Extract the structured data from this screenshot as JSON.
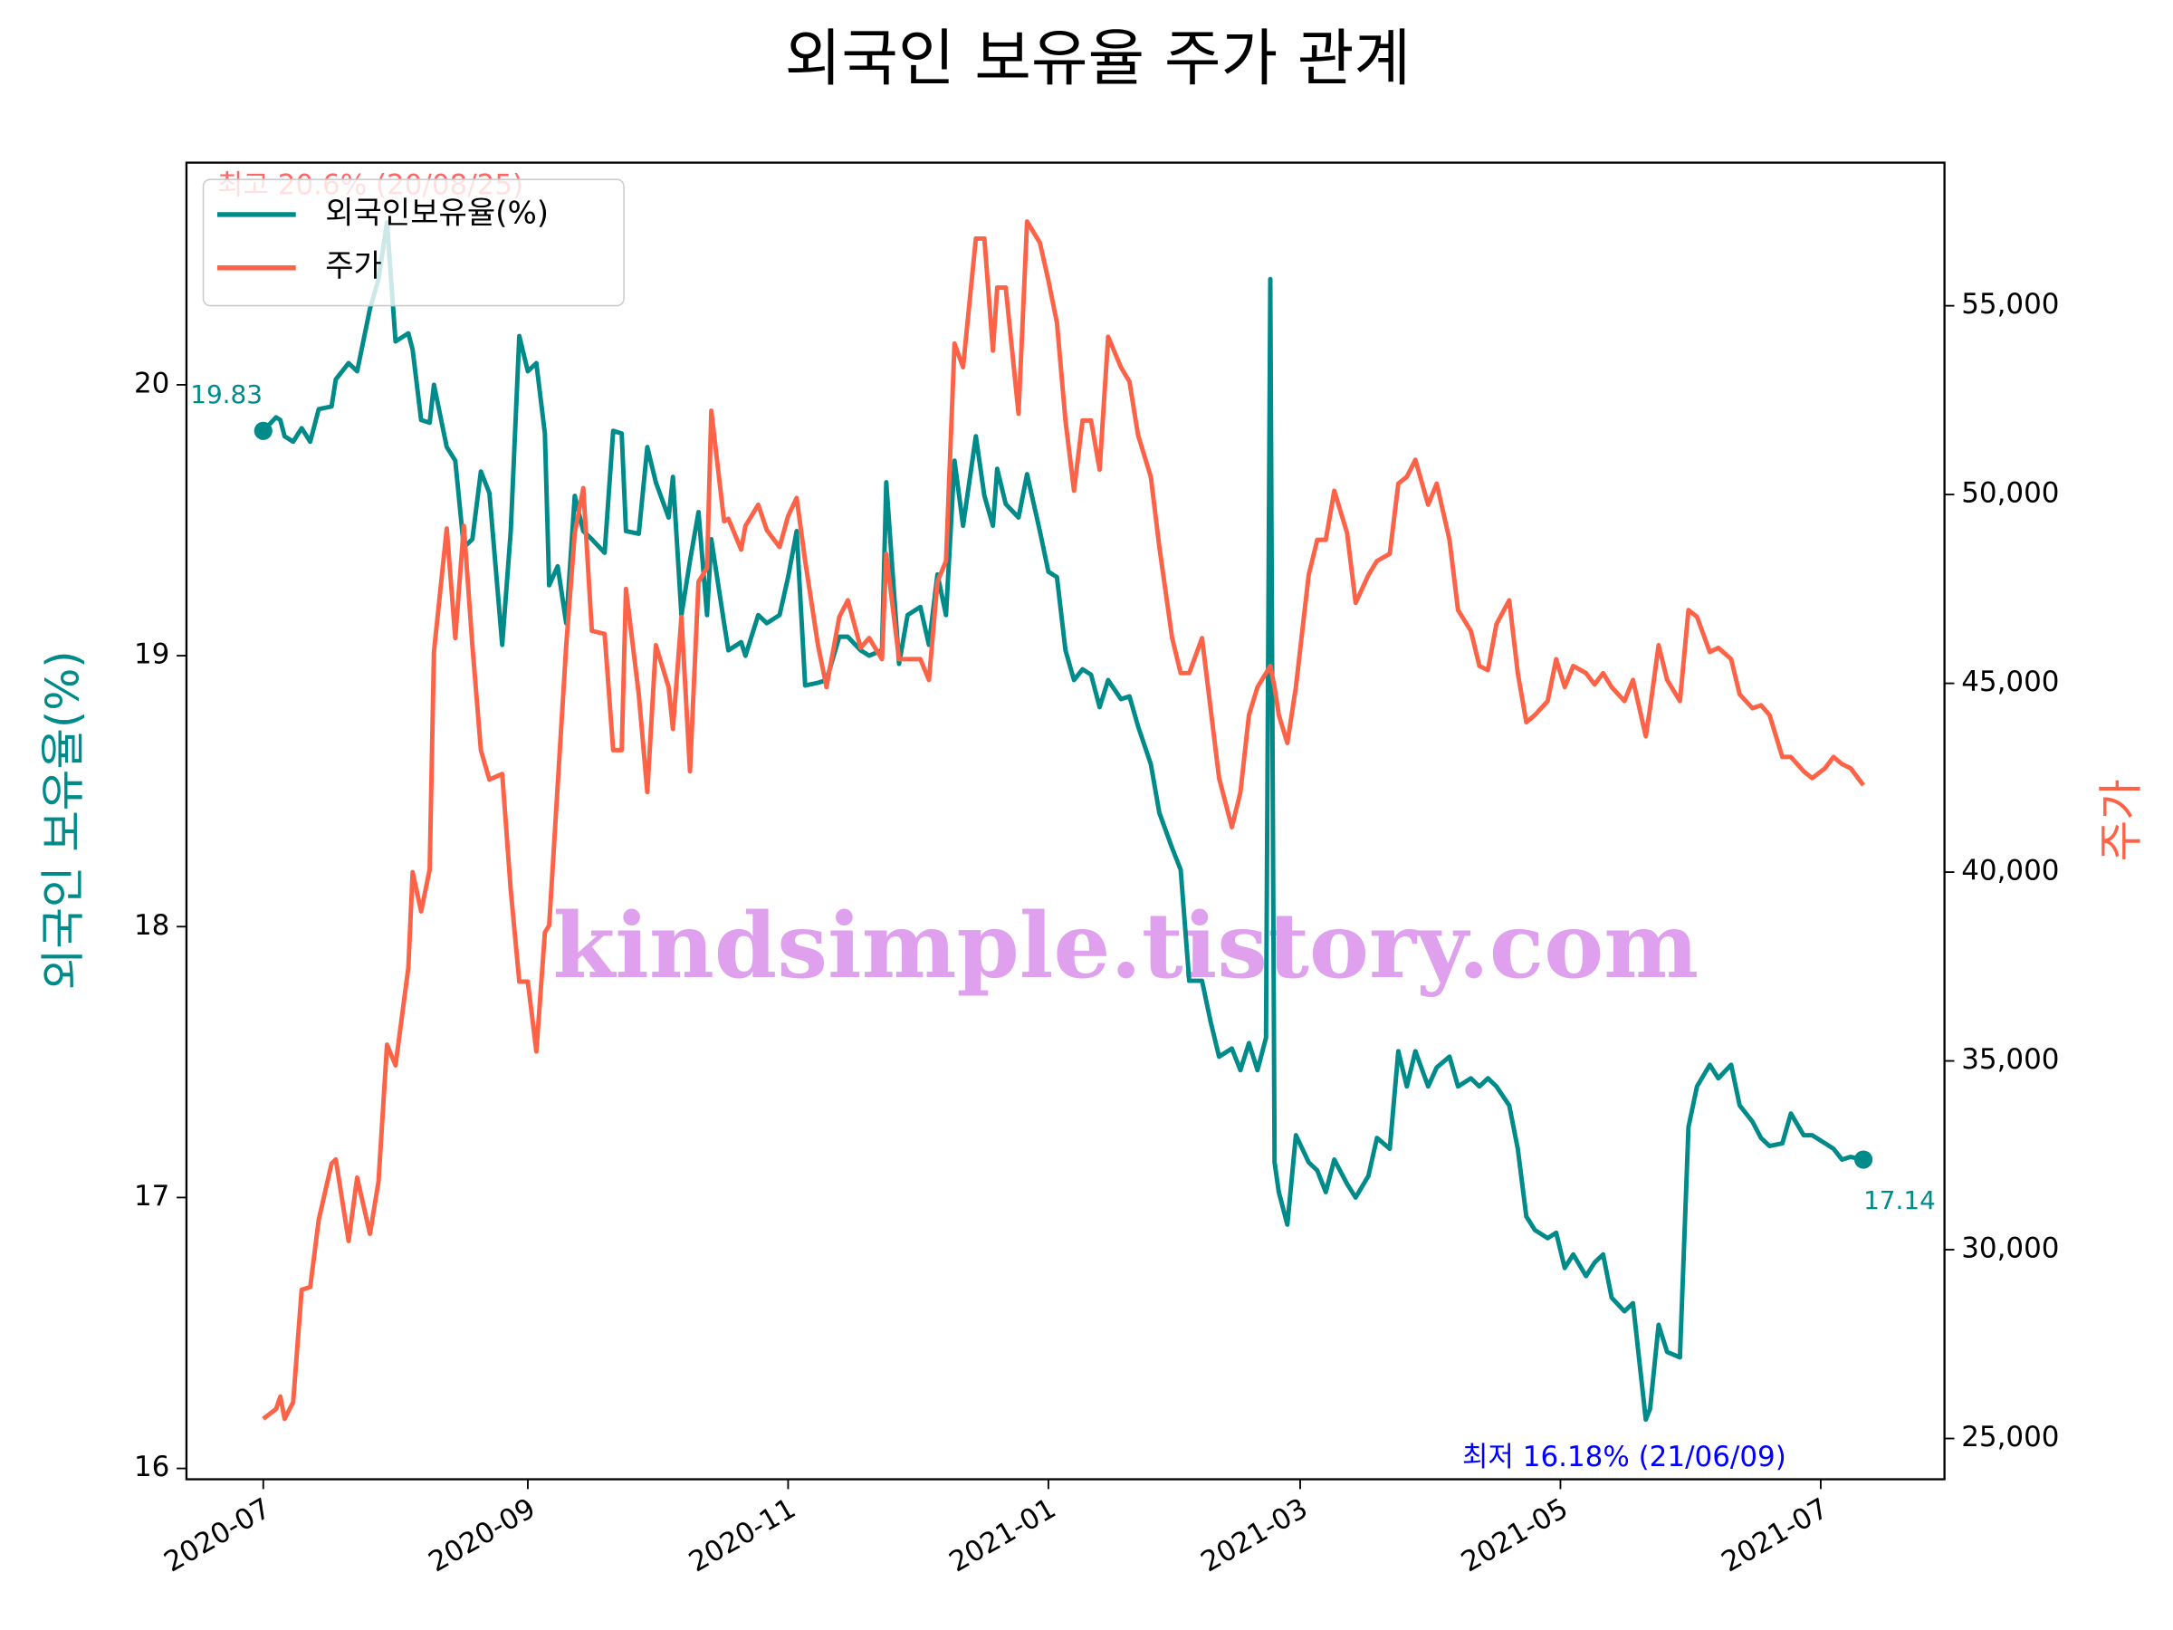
{
  "chart_data": {
    "type": "line",
    "title": "외국인 보유율 주가 관계",
    "y_label": "외국인 보유율(%)",
    "y2_label": "주가",
    "watermark": "kindsimple.tistory.com",
    "legend": "upper left",
    "xlim": [
      -18,
      394
    ],
    "xticks": [
      {
        "value": 0,
        "label": "2020-07"
      },
      {
        "value": 62,
        "label": "2020-09"
      },
      {
        "value": 123,
        "label": "2020-11"
      },
      {
        "value": 184,
        "label": "2021-01"
      },
      {
        "value": 243,
        "label": "2021-03"
      },
      {
        "value": 304,
        "label": "2021-05"
      },
      {
        "value": 365,
        "label": "2021-07"
      }
    ],
    "ylim": [
      15.96,
      20.82
    ],
    "yticks": [
      16,
      17,
      18,
      19,
      20
    ],
    "y2lim": [
      23920,
      58790
    ],
    "y2ticks": [
      {
        "value": 25000,
        "label": "25,000"
      },
      {
        "value": 30000,
        "label": "30,000"
      },
      {
        "value": 35000,
        "label": "35,000"
      },
      {
        "value": 40000,
        "label": "40,000"
      },
      {
        "value": 45000,
        "label": "45,000"
      },
      {
        "value": 50000,
        "label": "50,000"
      },
      {
        "value": 55000,
        "label": "55,000"
      }
    ],
    "x": [
      0,
      3,
      4,
      5,
      7,
      9,
      11,
      13,
      16,
      17,
      20,
      22,
      25,
      27,
      29,
      31,
      34,
      35,
      37,
      39,
      40,
      43,
      45,
      47,
      49,
      51,
      53,
      56,
      58,
      60,
      62,
      64,
      66,
      67,
      69,
      71,
      73,
      75,
      77,
      80,
      82,
      84,
      85,
      88,
      90,
      92,
      95,
      96,
      98,
      100,
      102,
      104,
      105,
      108,
      109,
      112,
      113,
      116,
      118,
      121,
      123,
      125,
      127,
      130,
      132,
      135,
      137,
      140,
      142,
      145,
      146,
      149,
      151,
      154,
      156,
      158,
      160,
      162,
      164,
      167,
      169,
      171,
      172,
      174,
      177,
      179,
      182,
      184,
      186,
      188,
      190,
      192,
      194,
      196,
      198,
      201,
      203,
      205,
      208,
      210,
      213,
      215,
      217,
      220,
      222,
      224,
      227,
      229,
      231,
      233,
      235,
      236,
      237,
      238,
      240,
      242,
      245,
      247,
      249,
      251,
      254,
      256,
      259,
      261,
      264,
      266,
      268,
      270,
      273,
      275,
      278,
      280,
      283,
      285,
      287,
      289,
      292,
      294,
      296,
      298,
      301,
      303,
      305,
      307,
      310,
      312,
      314,
      316,
      319,
      321,
      324,
      325,
      327,
      329,
      332,
      334,
      336,
      339,
      341,
      344,
      346,
      349,
      351,
      353,
      356,
      358,
      361,
      363,
      366,
      368,
      370,
      372,
      375
    ],
    "series": [
      {
        "name": "외국인보유율(%)",
        "color": "#008b8b",
        "values": [
          19.83,
          19.88,
          19.87,
          19.81,
          19.79,
          19.84,
          19.79,
          19.91,
          19.92,
          20.02,
          20.08,
          20.05,
          20.28,
          20.39,
          20.6,
          20.16,
          20.19,
          20.13,
          19.87,
          19.86,
          20.0,
          19.77,
          19.72,
          19.4,
          19.43,
          19.68,
          19.6,
          19.04,
          19.46,
          20.18,
          20.05,
          20.08,
          19.82,
          19.26,
          19.33,
          19.12,
          19.59,
          19.46,
          19.43,
          19.38,
          19.83,
          19.82,
          19.46,
          19.45,
          19.77,
          19.64,
          19.51,
          19.66,
          19.15,
          19.35,
          19.53,
          19.15,
          19.43,
          19.12,
          19.02,
          19.05,
          19.0,
          19.15,
          19.12,
          19.15,
          19.29,
          19.46,
          18.89,
          18.9,
          18.91,
          19.07,
          19.07,
          19.02,
          19.0,
          19.02,
          19.64,
          18.97,
          19.15,
          19.18,
          19.04,
          19.3,
          19.15,
          19.72,
          19.48,
          19.81,
          19.59,
          19.48,
          19.69,
          19.56,
          19.51,
          19.67,
          19.46,
          19.31,
          19.29,
          19.02,
          18.91,
          18.95,
          18.93,
          18.81,
          18.91,
          18.84,
          18.85,
          18.74,
          18.6,
          18.42,
          18.29,
          18.21,
          17.8,
          17.8,
          17.65,
          17.52,
          17.55,
          17.47,
          17.57,
          17.47,
          17.59,
          20.39,
          17.13,
          17.02,
          16.9,
          17.23,
          17.13,
          17.1,
          17.02,
          17.14,
          17.05,
          17.0,
          17.08,
          17.22,
          17.18,
          17.54,
          17.41,
          17.54,
          17.41,
          17.48,
          17.52,
          17.41,
          17.44,
          17.41,
          17.44,
          17.41,
          17.34,
          17.18,
          16.93,
          16.88,
          16.85,
          16.87,
          16.74,
          16.79,
          16.71,
          16.76,
          16.79,
          16.63,
          16.58,
          16.61,
          16.18,
          16.22,
          16.53,
          16.43,
          16.41,
          17.26,
          17.41,
          17.49,
          17.44,
          17.49,
          17.34,
          17.28,
          17.22,
          17.19,
          17.2,
          17.31,
          17.23,
          17.23,
          17.2,
          17.18,
          17.14,
          17.15,
          17.14
        ]
      },
      {
        "name": "주가",
        "color": "#ff6347",
        "axis": "y2",
        "values": [
          25520,
          25780,
          26110,
          25520,
          25960,
          28940,
          29010,
          30790,
          32280,
          32390,
          30230,
          31910,
          30420,
          31800,
          35430,
          34880,
          37470,
          40000,
          38960,
          40070,
          45830,
          49100,
          46200,
          49170,
          46010,
          43230,
          42450,
          42600,
          39520,
          37100,
          37100,
          35250,
          38400,
          38590,
          42300,
          46010,
          48980,
          50170,
          46390,
          46310,
          43230,
          43230,
          47500,
          44710,
          42120,
          46010,
          44900,
          43790,
          46760,
          42670,
          47690,
          48060,
          52220,
          49290,
          49360,
          48540,
          49170,
          49730,
          49060,
          48610,
          49430,
          49910,
          48240,
          46010,
          44900,
          46760,
          47200,
          45940,
          46200,
          45640,
          48430,
          45640,
          45640,
          45640,
          45090,
          47690,
          48240,
          54000,
          53370,
          56780,
          56780,
          53810,
          55480,
          55480,
          52140,
          57230,
          56670,
          55670,
          54550,
          51960,
          50100,
          51960,
          51960,
          50660,
          54180,
          53370,
          52990,
          51580,
          50470,
          48610,
          46200,
          45270,
          45270,
          46200,
          44340,
          42490,
          41190,
          42120,
          44160,
          44900,
          45270,
          45460,
          44900,
          44160,
          43420,
          44900,
          47870,
          48800,
          48800,
          50100,
          48980,
          47130,
          47870,
          48240,
          48430,
          50290,
          50470,
          50920,
          49730,
          50290,
          48800,
          46940,
          46390,
          45460,
          45350,
          46570,
          47200,
          45270,
          43970,
          44160,
          44530,
          45640,
          44900,
          45460,
          45270,
          44970,
          45270,
          44900,
          44530,
          45090,
          43600,
          44340,
          46010,
          45090,
          44530,
          46940,
          46760,
          45830,
          45940,
          45640,
          44710,
          44340,
          44420,
          44160,
          43050,
          43050,
          42670,
          42490,
          42750,
          43050,
          42860,
          42750,
          42300
        ]
      }
    ],
    "annotations": [
      {
        "text": "최고 20.6% (20/08/25)",
        "color": "#ff0000"
      },
      {
        "text": "최저 16.18% (21/06/09)",
        "color": "#0000ff"
      }
    ]
  }
}
